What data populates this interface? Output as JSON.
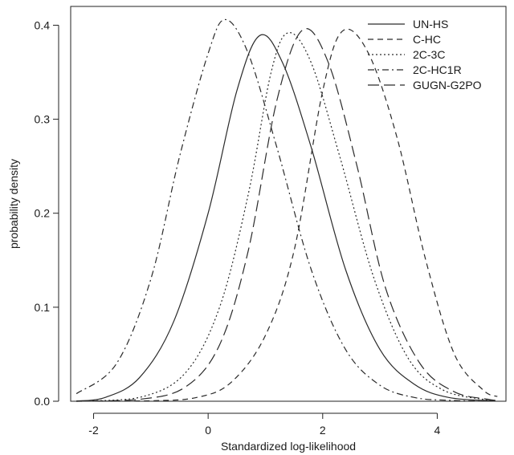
{
  "chart_data": {
    "type": "line",
    "title": "",
    "xlabel": "Standardized log-likelihood",
    "ylabel": "probability density",
    "xlim": [
      -2.4,
      5.2
    ],
    "ylim": [
      0.0,
      0.42
    ],
    "xticks": [
      -2,
      0,
      2,
      4
    ],
    "xtick_labels": [
      "-2",
      "0",
      "2",
      "4"
    ],
    "yticks": [
      0.0,
      0.1,
      0.2,
      0.3,
      0.4
    ],
    "ytick_labels": [
      "0.0",
      "0.1",
      "0.2",
      "0.3",
      "0.4"
    ],
    "grid": false,
    "legend_position": "top-right",
    "series": [
      {
        "name": "UN-HS",
        "dash": "solid",
        "peak_x": 0.9,
        "peak_y": 0.389,
        "x_range": [
          -2.35,
          5.05
        ],
        "points": [
          [
            -2.3,
            0.0002
          ],
          [
            -1.8,
            0.004
          ],
          [
            -1.2,
            0.025
          ],
          [
            -0.6,
            0.085
          ],
          [
            0.0,
            0.2
          ],
          [
            0.5,
            0.33
          ],
          [
            0.9,
            0.389
          ],
          [
            1.3,
            0.36
          ],
          [
            1.8,
            0.27
          ],
          [
            2.4,
            0.14
          ],
          [
            3.0,
            0.055
          ],
          [
            3.6,
            0.018
          ],
          [
            4.2,
            0.004
          ],
          [
            5.0,
            0.0004
          ]
        ]
      },
      {
        "name": "C-HC",
        "dash": "dashed",
        "peak_x": 2.35,
        "peak_y": 0.394,
        "x_range": [
          -2.35,
          5.05
        ],
        "points": [
          [
            -2.3,
            0.0
          ],
          [
            -1.0,
            0.0005
          ],
          [
            -0.2,
            0.004
          ],
          [
            0.4,
            0.02
          ],
          [
            1.0,
            0.07
          ],
          [
            1.5,
            0.16
          ],
          [
            2.0,
            0.33
          ],
          [
            2.35,
            0.394
          ],
          [
            2.8,
            0.37
          ],
          [
            3.3,
            0.28
          ],
          [
            3.8,
            0.15
          ],
          [
            4.3,
            0.05
          ],
          [
            4.8,
            0.012
          ],
          [
            5.05,
            0.005
          ]
        ]
      },
      {
        "name": "2C-3C",
        "dash": "dotted",
        "peak_x": 1.4,
        "peak_y": 0.392,
        "x_range": [
          -2.35,
          5.05
        ],
        "points": [
          [
            -2.3,
            0.0
          ],
          [
            -1.2,
            0.004
          ],
          [
            -0.4,
            0.03
          ],
          [
            0.2,
            0.1
          ],
          [
            0.7,
            0.22
          ],
          [
            1.1,
            0.35
          ],
          [
            1.4,
            0.392
          ],
          [
            1.8,
            0.36
          ],
          [
            2.3,
            0.26
          ],
          [
            2.9,
            0.13
          ],
          [
            3.5,
            0.045
          ],
          [
            4.1,
            0.012
          ],
          [
            4.8,
            0.002
          ],
          [
            5.05,
            0.001
          ]
        ]
      },
      {
        "name": "2C-HC1R",
        "dash": "dashdot",
        "peak_x": 0.3,
        "peak_y": 0.406,
        "x_range": [
          -2.35,
          5.05
        ],
        "points": [
          [
            -2.3,
            0.008
          ],
          [
            -1.6,
            0.04
          ],
          [
            -1.0,
            0.13
          ],
          [
            -0.5,
            0.26
          ],
          [
            0.0,
            0.37
          ],
          [
            0.3,
            0.406
          ],
          [
            0.7,
            0.37
          ],
          [
            1.2,
            0.27
          ],
          [
            1.8,
            0.14
          ],
          [
            2.4,
            0.055
          ],
          [
            3.0,
            0.017
          ],
          [
            3.6,
            0.004
          ],
          [
            4.2,
            0.001
          ],
          [
            5.05,
            0.0
          ]
        ]
      },
      {
        "name": "GUGN-G2PO",
        "dash": "longdash",
        "peak_x": 1.65,
        "peak_y": 0.395,
        "x_range": [
          -2.35,
          5.05
        ],
        "points": [
          [
            -2.3,
            0.0
          ],
          [
            -1.2,
            0.002
          ],
          [
            -0.4,
            0.015
          ],
          [
            0.2,
            0.06
          ],
          [
            0.7,
            0.16
          ],
          [
            1.2,
            0.32
          ],
          [
            1.65,
            0.395
          ],
          [
            2.1,
            0.36
          ],
          [
            2.6,
            0.25
          ],
          [
            3.1,
            0.12
          ],
          [
            3.7,
            0.04
          ],
          [
            4.3,
            0.01
          ],
          [
            4.9,
            0.002
          ],
          [
            5.05,
            0.001
          ]
        ]
      }
    ]
  }
}
